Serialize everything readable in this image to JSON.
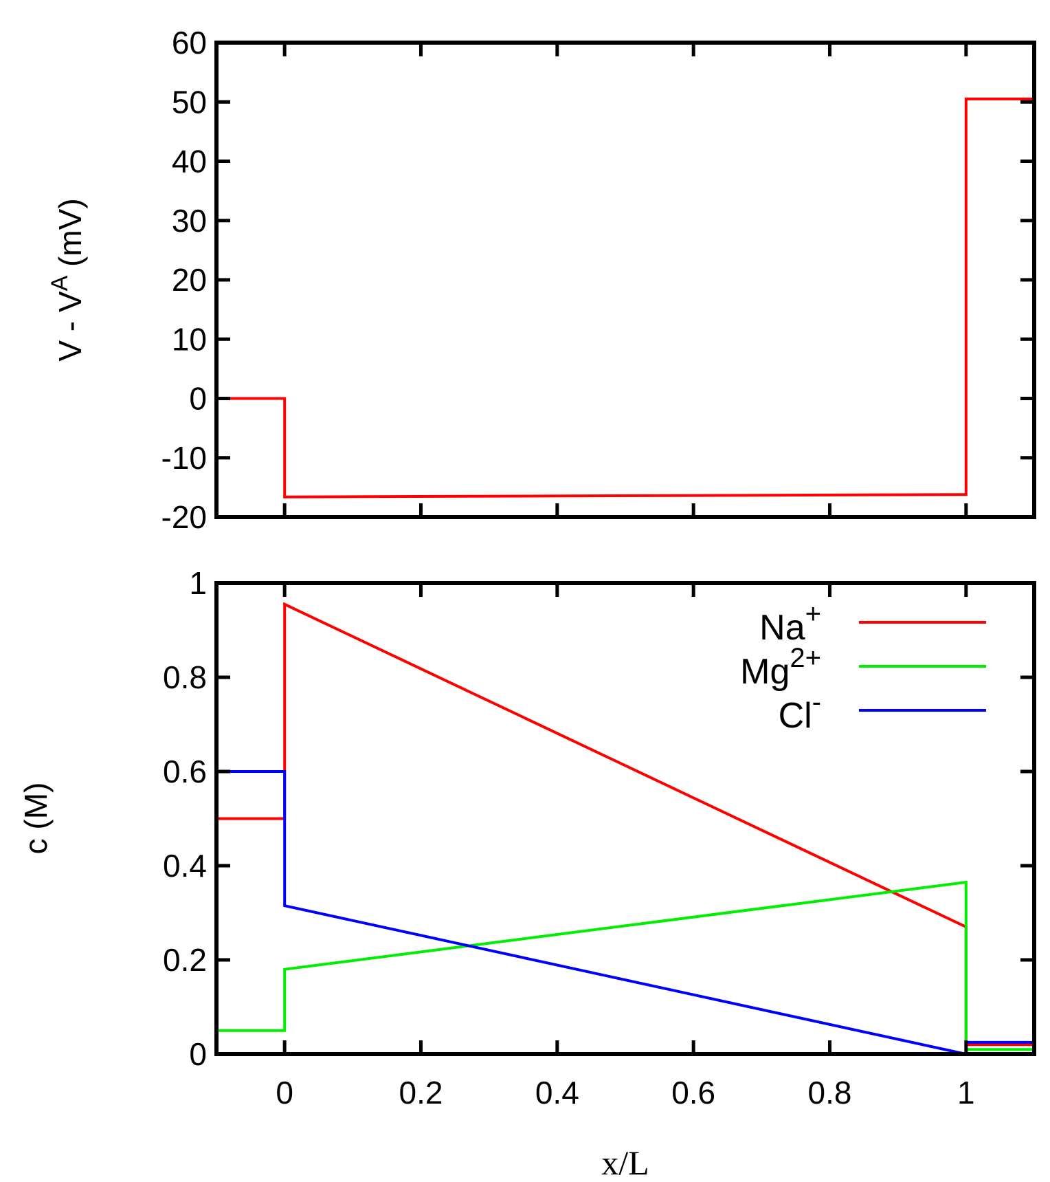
{
  "chart_data": [
    {
      "type": "line",
      "ylabel": {
        "base": "V - V",
        "sup": "A",
        "tail": " (mV)"
      },
      "xlim": [
        -0.1,
        1.1
      ],
      "ylim": [
        -20,
        60
      ],
      "yticks": [
        -20,
        -10,
        0,
        10,
        20,
        30,
        40,
        50,
        60
      ],
      "yticklabels": [
        "-20",
        "-10",
        "0",
        "10",
        "20",
        "30",
        "40",
        "50",
        "60"
      ],
      "xticks": [
        0,
        0.2,
        0.4,
        0.6,
        0.8,
        1
      ],
      "series": [
        {
          "color": "#ff0000",
          "x": [
            -0.1,
            0,
            0,
            1,
            1,
            1.1
          ],
          "y": [
            0,
            0,
            -16.6,
            -16.2,
            50.5,
            50.5
          ]
        }
      ]
    },
    {
      "type": "line",
      "ylabel": "c (M)",
      "xlabel": "x/L",
      "xlim": [
        -0.1,
        1.1
      ],
      "ylim": [
        0,
        1
      ],
      "yticks": [
        0,
        0.2,
        0.4,
        0.6,
        0.8,
        1
      ],
      "yticklabels": [
        "0",
        "0.2",
        "0.4",
        "0.6",
        "0.8",
        "1"
      ],
      "xticks": [
        0,
        0.2,
        0.4,
        0.6,
        0.8,
        1
      ],
      "xticklabels": [
        "0",
        "0.2",
        "0.4",
        "0.6",
        "0.8",
        "1"
      ],
      "legend_position": "top-right",
      "series": [
        {
          "name": {
            "base": "Na",
            "sup": "+"
          },
          "color": "#ff0000",
          "x": [
            -0.1,
            0,
            0,
            1,
            1,
            1.1
          ],
          "y": [
            0.5,
            0.5,
            0.955,
            0.27,
            0.02,
            0.02
          ]
        },
        {
          "name": {
            "base": "Mg",
            "sup": "2+"
          },
          "color": "#00ee00",
          "x": [
            -0.1,
            0,
            0,
            1,
            1,
            1.1
          ],
          "y": [
            0.05,
            0.05,
            0.18,
            0.365,
            0.01,
            0.01
          ]
        },
        {
          "name": {
            "base": "Cl",
            "sup": "-"
          },
          "color": "#0000ff",
          "x": [
            -0.1,
            0,
            0,
            1,
            1,
            1.1
          ],
          "y": [
            0.6,
            0.6,
            0.315,
            0.0,
            0.025,
            0.025
          ]
        }
      ]
    }
  ]
}
